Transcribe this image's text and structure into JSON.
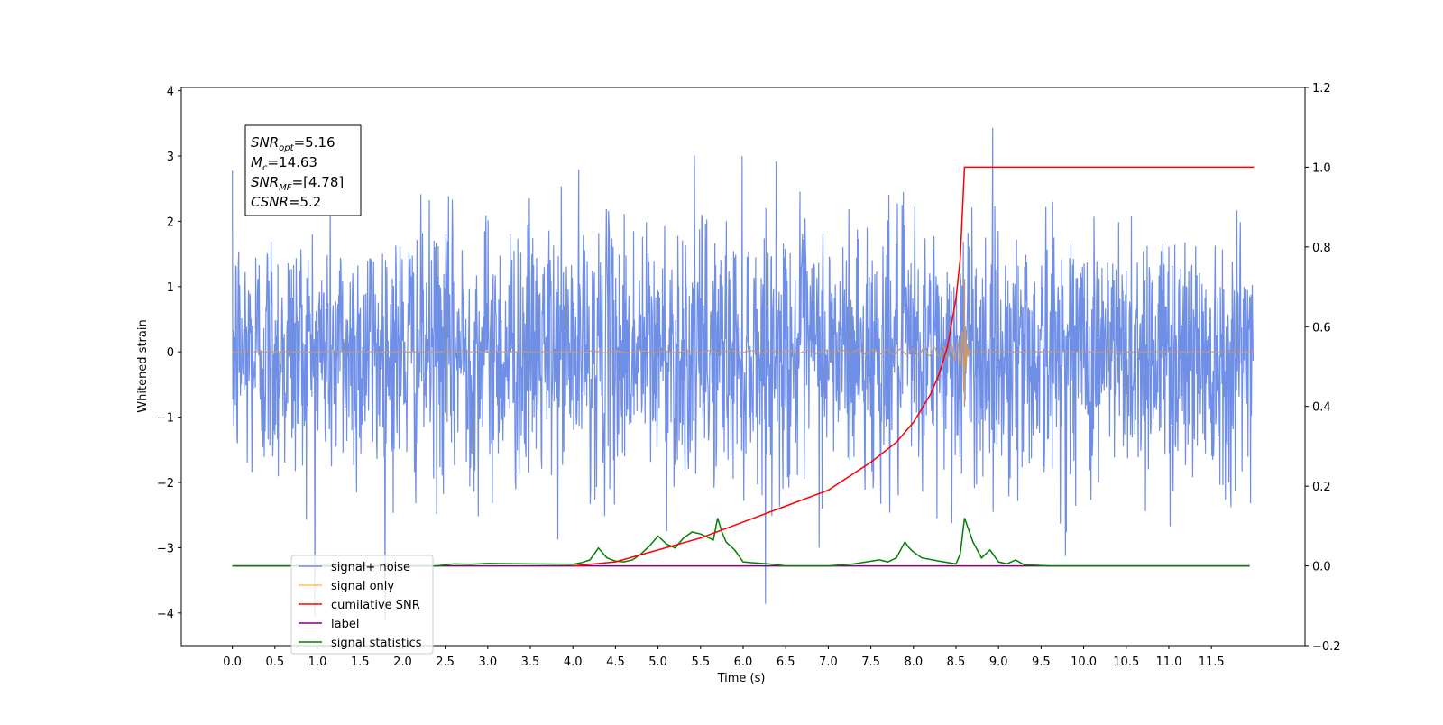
{
  "chart_data": {
    "type": "line",
    "xlabel": "Time (s)",
    "ylabel": "Whitened strain",
    "xlim": [
      -0.6,
      12.6
    ],
    "ylim": [
      -4.5,
      4.05
    ],
    "y2lim": [
      -0.2,
      1.2
    ],
    "x_ticks": [
      "0.0",
      "0.5",
      "1.0",
      "1.5",
      "2.0",
      "2.5",
      "3.0",
      "3.5",
      "4.0",
      "4.5",
      "5.0",
      "5.5",
      "6.0",
      "6.5",
      "7.0",
      "7.5",
      "8.0",
      "8.5",
      "9.0",
      "9.5",
      "10.0",
      "10.5",
      "11.0",
      "11.5"
    ],
    "y_ticks": [
      "4",
      "3",
      "2",
      "1",
      "0",
      "−1",
      "−2",
      "−3",
      "−4"
    ],
    "y2_ticks": [
      "1.2",
      "1.0",
      "0.8",
      "0.6",
      "0.4",
      "0.2",
      "0.0",
      "−0.2"
    ],
    "annotation": {
      "lines": [
        {
          "main": "SNR",
          "sub": "opt",
          "rest": "=5.16"
        },
        {
          "main": "M",
          "sub": "c",
          "rest": "=14.63"
        },
        {
          "main": "SNR",
          "sub": "MF",
          "rest": "=[4.78]"
        },
        {
          "main": "CSNR",
          "sub": "",
          "rest": "=5.2"
        }
      ]
    },
    "legend": {
      "position": "lower-left",
      "entries": [
        {
          "label": "signal+ noise",
          "color": "#6f8ee6"
        },
        {
          "label": "signal only",
          "color": "#ffbf60"
        },
        {
          "label": "cumilative SNR",
          "color": "#ff0000"
        },
        {
          "label": "label",
          "color": "#800080"
        },
        {
          "label": "signal statistics",
          "color": "#008000"
        }
      ]
    },
    "series": [
      {
        "name": "signal+ noise",
        "axis": "left",
        "color": "#6f8ee6",
        "t_range": [
          0,
          11.99
        ],
        "amplitude_std": 1.0,
        "y_range": [
          -4.12,
          3.67
        ]
      },
      {
        "name": "signal only",
        "axis": "left",
        "color": "#c8996b",
        "t_start": 4.0,
        "t_merger": 8.6,
        "peak_amplitude": 1.12,
        "min_amplitude": -0.84
      },
      {
        "name": "cumilative SNR",
        "axis": "right",
        "x": [
          4.0,
          4.5,
          5.0,
          5.5,
          6.0,
          6.5,
          7.0,
          7.5,
          7.8,
          8.0,
          8.2,
          8.3,
          8.4,
          8.5,
          8.55,
          8.6,
          12.0
        ],
        "y": [
          0.0,
          0.01,
          0.04,
          0.07,
          0.11,
          0.15,
          0.19,
          0.26,
          0.31,
          0.36,
          0.43,
          0.48,
          0.55,
          0.67,
          0.77,
          1.0,
          1.0
        ]
      },
      {
        "name": "label",
        "axis": "right",
        "x": [
          0.0,
          11.95
        ],
        "y": [
          0.0,
          0.0
        ]
      },
      {
        "name": "signal statistics",
        "axis": "right",
        "x": [
          0.0,
          2.4,
          2.6,
          2.8,
          3.0,
          3.5,
          4.0,
          4.1,
          4.2,
          4.3,
          4.4,
          4.5,
          4.6,
          4.7,
          4.8,
          4.9,
          5.0,
          5.1,
          5.2,
          5.3,
          5.4,
          5.5,
          5.6,
          5.65,
          5.7,
          5.75,
          5.8,
          5.9,
          6.0,
          6.1,
          6.3,
          6.5,
          7.0,
          7.3,
          7.6,
          7.7,
          7.8,
          7.9,
          7.95,
          8.0,
          8.1,
          8.3,
          8.5,
          8.55,
          8.6,
          8.65,
          8.7,
          8.8,
          8.9,
          9.0,
          9.1,
          9.2,
          9.3,
          9.6,
          11.95
        ],
        "y": [
          0.0,
          0.0,
          0.005,
          0.004,
          0.006,
          0.005,
          0.004,
          0.008,
          0.015,
          0.045,
          0.02,
          0.012,
          0.01,
          0.015,
          0.03,
          0.05,
          0.075,
          0.055,
          0.045,
          0.07,
          0.085,
          0.08,
          0.07,
          0.065,
          0.12,
          0.085,
          0.06,
          0.04,
          0.01,
          0.008,
          0.005,
          0.0,
          0.0,
          0.005,
          0.015,
          0.01,
          0.02,
          0.06,
          0.045,
          0.035,
          0.02,
          0.012,
          0.005,
          0.03,
          0.12,
          0.09,
          0.06,
          0.02,
          0.04,
          0.01,
          0.005,
          0.015,
          0.003,
          0.0,
          0.0
        ]
      }
    ]
  }
}
